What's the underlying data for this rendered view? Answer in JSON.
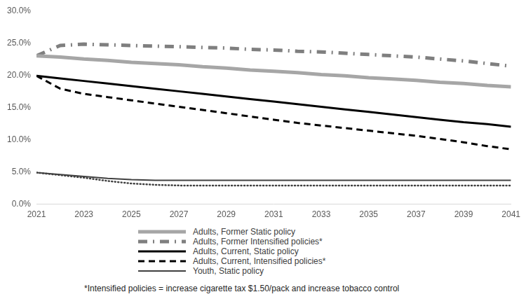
{
  "chart_data": {
    "type": "line",
    "x": [
      2021,
      2022,
      2023,
      2024,
      2025,
      2026,
      2027,
      2028,
      2029,
      2030,
      2031,
      2032,
      2033,
      2034,
      2035,
      2036,
      2037,
      2038,
      2039,
      2040,
      2041
    ],
    "xlim": [
      2021,
      2041
    ],
    "xticks": [
      2021,
      2023,
      2025,
      2027,
      2029,
      2031,
      2033,
      2035,
      2037,
      2039,
      2041
    ],
    "ylim": [
      0,
      30
    ],
    "yticks": [
      {
        "value": 0,
        "label": "0.0%"
      },
      {
        "value": 5,
        "label": "5.0%"
      },
      {
        "value": 10,
        "label": "10.0%"
      },
      {
        "value": 15,
        "label": "15.0%"
      },
      {
        "value": 20,
        "label": "20.0%"
      },
      {
        "value": 25,
        "label": "25.0%"
      },
      {
        "value": 30,
        "label": "30.0%"
      }
    ],
    "grid": false,
    "legend": "bottom",
    "series": [
      {
        "name": "Adults, Former Static policy",
        "color": "#a6a6a6",
        "line_style": "solid",
        "values": [
          23.0,
          22.8,
          22.5,
          22.3,
          22.0,
          21.8,
          21.6,
          21.3,
          21.1,
          20.8,
          20.6,
          20.4,
          20.1,
          19.9,
          19.6,
          19.4,
          19.2,
          18.9,
          18.7,
          18.4,
          18.2
        ]
      },
      {
        "name": "Adults, Former Intensified policies*",
        "color": "#7f7f7f",
        "line_style": "dashdot",
        "values": [
          23.0,
          24.6,
          24.8,
          24.7,
          24.6,
          24.5,
          24.4,
          24.3,
          24.2,
          24.0,
          23.9,
          23.7,
          23.6,
          23.4,
          23.2,
          23.0,
          22.8,
          22.5,
          22.2,
          21.8,
          21.4
        ]
      },
      {
        "name": "Adults, Current, Static policy",
        "color": "#000000",
        "line_style": "solid",
        "values": [
          19.9,
          19.5,
          19.1,
          18.7,
          18.3,
          17.9,
          17.5,
          17.1,
          16.7,
          16.3,
          15.9,
          15.5,
          15.1,
          14.7,
          14.3,
          13.9,
          13.5,
          13.1,
          12.7,
          12.4,
          12.0
        ]
      },
      {
        "name": "Adults, Current, Intensified policies*",
        "color": "#000000",
        "line_style": "dashed",
        "values": [
          19.9,
          17.9,
          17.1,
          16.6,
          16.1,
          15.6,
          15.1,
          14.6,
          14.1,
          13.6,
          13.1,
          12.6,
          12.2,
          11.8,
          11.4,
          11.0,
          10.6,
          10.1,
          9.6,
          9.0,
          8.5
        ]
      },
      {
        "name": "Youth, Static policy",
        "color": "#404040",
        "line_style": "solid",
        "values": [
          4.9,
          4.6,
          4.3,
          4.0,
          3.8,
          3.7,
          3.7,
          3.7,
          3.7,
          3.7,
          3.7,
          3.7,
          3.7,
          3.7,
          3.7,
          3.7,
          3.7,
          3.7,
          3.7,
          3.7,
          3.7
        ]
      },
      {
        "color": "#404040",
        "line_style": "dotted",
        "values": [
          4.9,
          4.5,
          4.1,
          3.6,
          3.2,
          3.0,
          2.9,
          2.9,
          2.9,
          2.9,
          2.9,
          2.9,
          2.9,
          2.9,
          2.9,
          2.9,
          2.9,
          2.9,
          2.9,
          2.9,
          2.9
        ]
      }
    ],
    "annotations": [
      "*Intensified policies = increase cigarette tax $1.50/pack and increase tobacco control"
    ]
  }
}
